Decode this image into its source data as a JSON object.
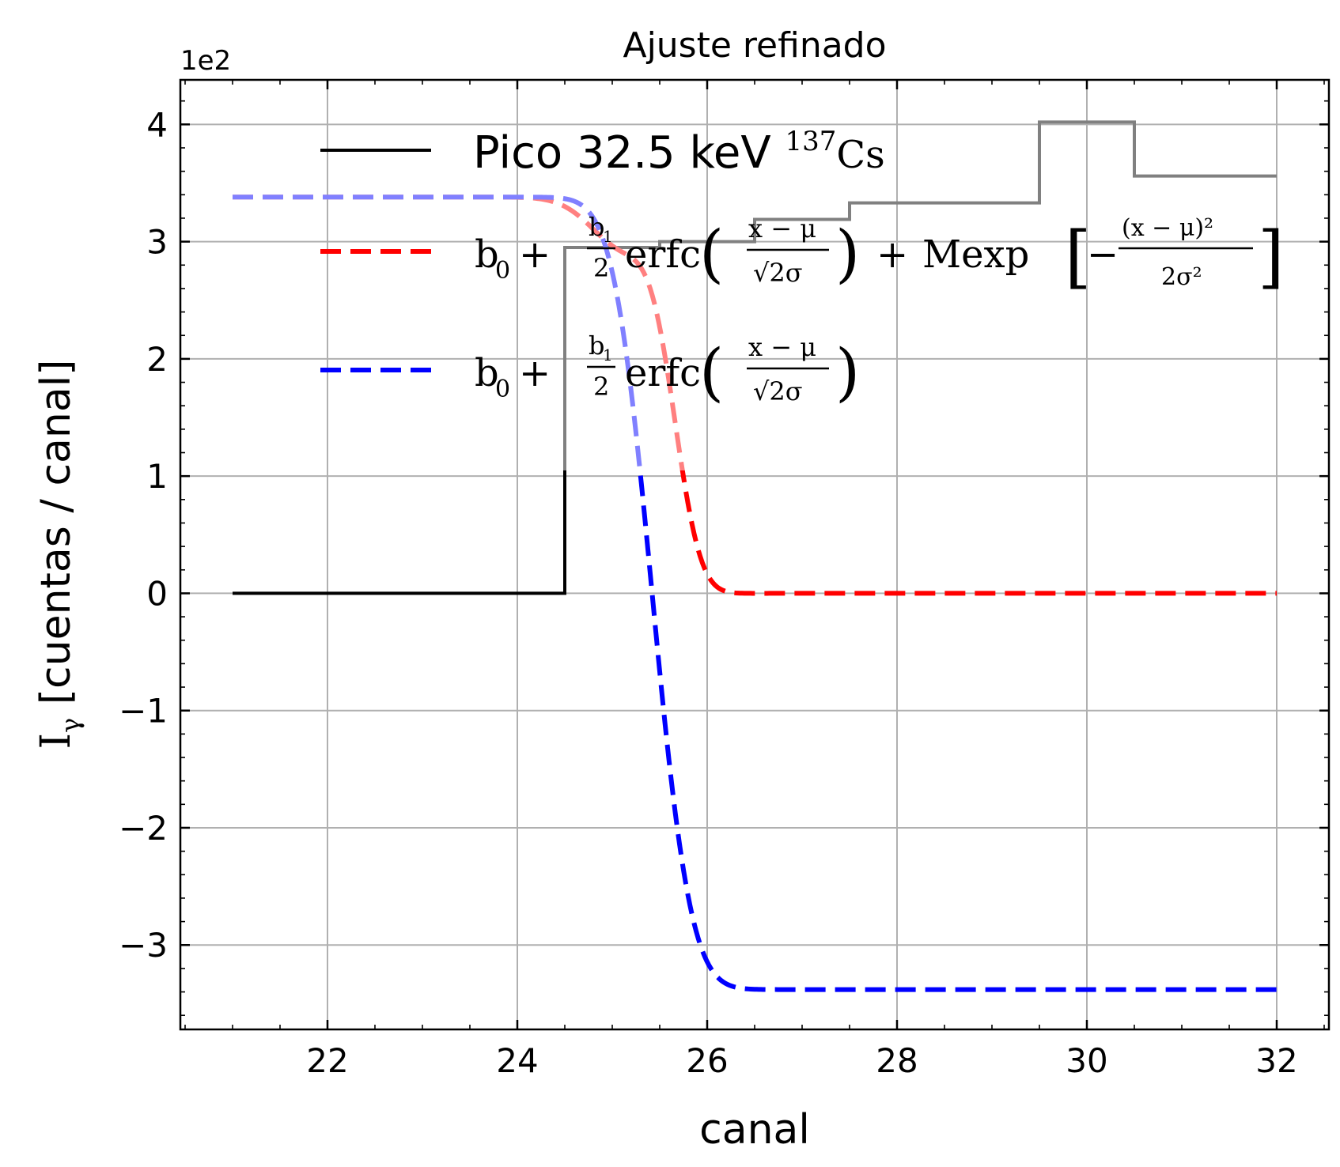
{
  "chart_data": {
    "type": "line",
    "title": "Ajuste refinado",
    "xlabel": "canal",
    "ylabel": "I",
    "ylabel_subscript": "γ",
    "ylabel_suffix": " [cuentas / canal]",
    "y_multiplier": "1e2",
    "xlim": [
      20.45,
      32.55
    ],
    "ylim": [
      -3.72,
      4.38
    ],
    "xticks": [
      22,
      24,
      26,
      28,
      30,
      32
    ],
    "xtick_labels": [
      "22",
      "24",
      "26",
      "28",
      "30",
      "32"
    ],
    "yticks": [
      -3,
      -2,
      -1,
      0,
      1,
      2,
      3,
      4
    ],
    "ytick_labels": [
      "−3",
      "−2",
      "−1",
      "0",
      "1",
      "2",
      "3",
      "4"
    ],
    "grid": true,
    "legend_position": "top-left",
    "series": [
      {
        "name": "Pico 32.5 keV ¹³⁷Cs",
        "style": "step",
        "color": "#000000",
        "colors": {
          "low": "#000000",
          "high": "#808080"
        },
        "x": [
          21.0,
          21.5,
          22.5,
          23.5,
          24.5,
          25.5,
          26.5,
          27.5,
          28.5,
          29.5,
          30.5,
          31.5,
          32.0
        ],
        "y": [
          0,
          0,
          0,
          0,
          0,
          2.95,
          3.0,
          3.19,
          3.33,
          3.33,
          4.02,
          3.56,
          3.56
        ]
      },
      {
        "name": "b₀ + (b₁/2) erfc((x − μ)/(√2σ)) + M exp[−(x − μ)²/(2σ²)]",
        "style": "dashed",
        "color": "#ff0000",
        "colors": {
          "low": "#ff0000",
          "high": "#ff8080"
        },
        "model": {
          "b0": 0.0,
          "b1": 3.38,
          "mu": 25.65,
          "sigma": 0.22,
          "M": -0.45,
          "mu_g": 25.15,
          "sigma_g": 0.35
        },
        "x_range": [
          21.0,
          32.0
        ]
      },
      {
        "name": "b₀ + (b₁/2) erfc((x − μ)/(√2σ))",
        "style": "dashed",
        "color": "#0000ff",
        "colors": {
          "low": "#0000ff",
          "high": "#8080ff"
        },
        "model": {
          "b0": -3.38,
          "b1": 6.76,
          "mu": 25.42,
          "sigma": 0.32
        },
        "x_range": [
          21.0,
          32.0
        ]
      }
    ]
  }
}
